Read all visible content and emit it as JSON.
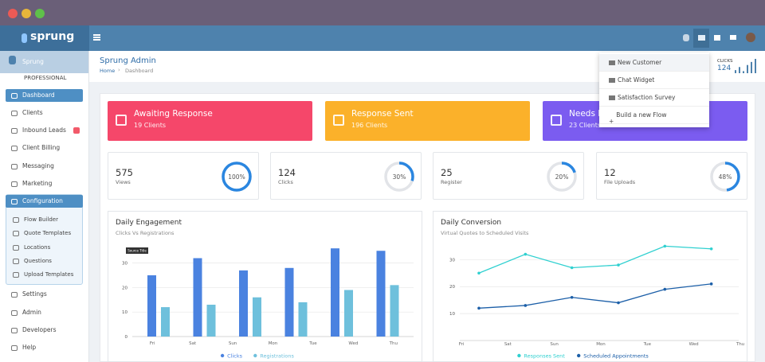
{
  "topbar": {
    "logo": "sprung"
  },
  "sidebar": {
    "org": "Sprung",
    "plan": "PROFESSIONAL",
    "items": [
      "Dashboard",
      "Clients",
      "Inbound Leads",
      "Client Billing",
      "Messaging",
      "Marketing"
    ],
    "config": {
      "label": "Configuration",
      "items": [
        "Flow Builder",
        "Quote Templates",
        "Locations",
        "Questions",
        "Upload Templates"
      ]
    },
    "bottom": [
      "Settings",
      "Admin",
      "Developers",
      "Help"
    ]
  },
  "header": {
    "title": "Sprung Admin",
    "breadcrumb": [
      "Home",
      "Dashboard"
    ]
  },
  "dropdown": [
    "New Customer",
    "Chat Widget",
    "Satisfaction Survey",
    "Build a new Flow"
  ],
  "clicks_widget": {
    "label": "CLICKS",
    "value": 124,
    "bars": [
      3,
      6,
      2,
      8,
      11,
      14
    ]
  },
  "cards": [
    {
      "title": "Awaiting Response",
      "subtitle": "19 Clients",
      "color": "#f5476a"
    },
    {
      "title": "Response Sent",
      "subtitle": "196 Clients",
      "color": "#fbb12a"
    },
    {
      "title": "Needs F",
      "subtitle": "23 Clients",
      "color": "#7b5cf0"
    }
  ],
  "stats": [
    {
      "value": 575,
      "label": "Views",
      "percent": 100,
      "percent_label": "100%"
    },
    {
      "value": 124,
      "label": "Clicks",
      "percent": 30,
      "percent_label": "30%"
    },
    {
      "value": 25,
      "label": "Register",
      "percent": 20,
      "percent_label": "20%"
    },
    {
      "value": 12,
      "label": "File Uploads",
      "percent": 48,
      "percent_label": "48%"
    }
  ],
  "charts": [
    {
      "type": "bar",
      "title": "Daily Engagement",
      "subtitle": "Clicks Vs Registrations",
      "tooltip": "Source Title",
      "categories": [
        "Fri",
        "Sat",
        "Sun",
        "Mon",
        "Tue",
        "Wed",
        "Thu"
      ],
      "series": [
        {
          "name": "Clicks",
          "color": "#4a82e0",
          "values": [
            25,
            32,
            27,
            28,
            36,
            35,
            null
          ]
        },
        {
          "name": "Registrations",
          "color": "#6ec0dc",
          "values": [
            12,
            13,
            16,
            14,
            19,
            21,
            null
          ]
        }
      ],
      "ylim": [
        0,
        38
      ],
      "yticks": [
        0,
        10,
        20,
        30
      ],
      "grid": true
    },
    {
      "type": "line",
      "title": "Daily Conversion",
      "subtitle": "Virtual Quotes to Scheduled Visits",
      "categories": [
        "Fri",
        "Sat",
        "Sun",
        "Mon",
        "Tue",
        "Wed",
        "Thu"
      ],
      "series": [
        {
          "name": "Responses Sent",
          "color": "#2fd0d0",
          "values": [
            25,
            32,
            27,
            28,
            35,
            34,
            null
          ]
        },
        {
          "name": "Scheduled Appointments",
          "color": "#1c5fa8",
          "values": [
            12,
            13,
            16,
            14,
            19,
            21,
            null
          ]
        }
      ],
      "ylim": [
        0,
        36
      ],
      "yticks": [
        10,
        20,
        30
      ],
      "grid": true
    }
  ]
}
